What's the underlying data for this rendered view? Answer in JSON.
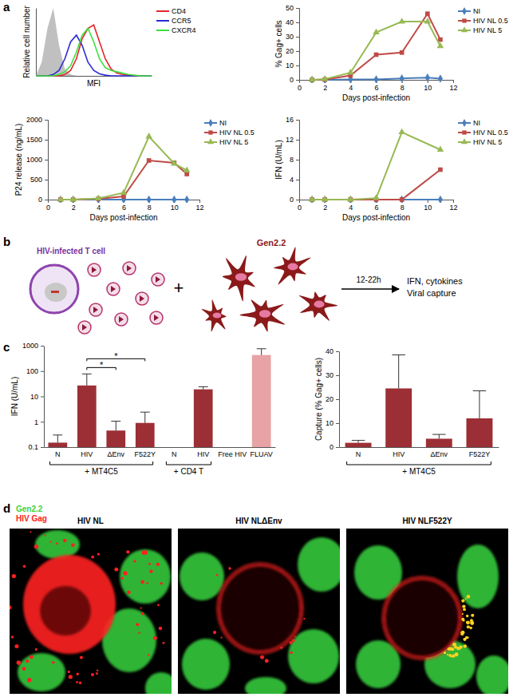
{
  "panel_labels": [
    "a",
    "b",
    "c",
    "d"
  ],
  "chart_data": [
    {
      "type": "line",
      "x_label": "MFI",
      "y_label": "Relative cell number",
      "tick_labels": false,
      "legend": "right",
      "xlim": [
        0,
        100
      ],
      "ylim": [
        0,
        100
      ],
      "x": [
        0,
        5,
        10,
        15,
        20,
        25,
        30,
        35,
        40,
        45,
        50,
        55,
        60,
        65,
        70,
        75,
        80,
        85,
        90,
        95,
        100
      ],
      "series": [
        {
          "type": "area",
          "color": "#c0c0c0",
          "values": [
            0,
            20,
            70,
            100,
            45,
            10,
            2,
            0,
            0,
            0,
            0,
            0,
            0,
            0,
            0,
            0,
            0,
            0,
            0,
            0,
            0
          ]
        },
        {
          "name": "CD4",
          "color": "#e3262b",
          "values": [
            0,
            0,
            0,
            0,
            0,
            2,
            8,
            25,
            55,
            70,
            75,
            50,
            25,
            10,
            4,
            2,
            1,
            0,
            0,
            0,
            0
          ]
        },
        {
          "name": "CCR5",
          "color": "#2b2bd6",
          "values": [
            0,
            0,
            0,
            2,
            8,
            25,
            50,
            60,
            45,
            20,
            8,
            3,
            1,
            0,
            0,
            0,
            0,
            0,
            0,
            0,
            0
          ]
        },
        {
          "name": "CXCR4",
          "color": "#3fe03f",
          "values": [
            0,
            0,
            0,
            0,
            2,
            6,
            15,
            35,
            60,
            70,
            50,
            25,
            12,
            8,
            6,
            4,
            2,
            1,
            0,
            0,
            0
          ]
        }
      ]
    },
    {
      "type": "line",
      "x_label": "Days post-infection",
      "y_label": "% Gag+ cells",
      "legend": "right",
      "xlim": [
        0,
        12
      ],
      "xticks": [
        0,
        2,
        4,
        6,
        8,
        10,
        12
      ],
      "ylim": [
        0,
        50
      ],
      "yticks": [
        0,
        10,
        20,
        30,
        40,
        50
      ],
      "x": [
        1,
        2,
        4,
        6,
        8,
        10,
        11
      ],
      "series": [
        {
          "name": "NI",
          "color": "#4a7ebb",
          "marker": "diamond",
          "values": [
            0,
            0,
            0.3,
            0.3,
            1,
            1.5,
            0.8
          ]
        },
        {
          "name": "HIV NL 0.5",
          "color": "#be4b48",
          "marker": "square",
          "values": [
            0,
            0.2,
            3,
            17.5,
            19,
            46,
            28
          ]
        },
        {
          "name": "HIV NL 5",
          "color": "#98b954",
          "marker": "triangle",
          "values": [
            0,
            0.5,
            5,
            33,
            40.5,
            40.5,
            23.5
          ]
        }
      ]
    },
    {
      "type": "line",
      "x_label": "Days post-infection",
      "y_label": "P24 release (ng/mL)",
      "legend": "right",
      "xlim": [
        0,
        12
      ],
      "xticks": [
        0,
        2,
        4,
        6,
        8,
        10,
        12
      ],
      "ylim": [
        0,
        2000
      ],
      "yticks": [
        0,
        500,
        1000,
        1500,
        2000
      ],
      "x": [
        1,
        2,
        4,
        6,
        8,
        10,
        11
      ],
      "series": [
        {
          "name": "NI",
          "color": "#4a7ebb",
          "marker": "diamond",
          "values": [
            0,
            0,
            0,
            0,
            0,
            0,
            0
          ]
        },
        {
          "name": "HIV NL 0.5",
          "color": "#be4b48",
          "marker": "square",
          "values": [
            0,
            0,
            20,
            80,
            980,
            920,
            640
          ]
        },
        {
          "name": "HIV NL 5",
          "color": "#98b954",
          "marker": "triangle",
          "values": [
            0,
            0,
            30,
            170,
            1580,
            900,
            730
          ]
        }
      ]
    },
    {
      "type": "line",
      "x_label": "Days post-infection",
      "y_label": "IFN (U/mL)",
      "legend": "right",
      "xlim": [
        0,
        12
      ],
      "xticks": [
        0,
        2,
        4,
        6,
        8,
        10,
        12
      ],
      "ylim": [
        0,
        16
      ],
      "yticks": [
        0,
        4,
        8,
        12,
        16
      ],
      "x": [
        1,
        2,
        4,
        6,
        8,
        11
      ],
      "series": [
        {
          "name": "NI",
          "color": "#4a7ebb",
          "marker": "diamond",
          "values": [
            0,
            0,
            0,
            0,
            0,
            0
          ]
        },
        {
          "name": "HIV NL 0.5",
          "color": "#be4b48",
          "marker": "square",
          "values": [
            0,
            0,
            0,
            0,
            0,
            6
          ]
        },
        {
          "name": "HIV NL 5",
          "color": "#98b954",
          "marker": "triangle",
          "values": [
            0,
            0,
            0,
            0.3,
            13.5,
            10
          ]
        }
      ]
    },
    {
      "type": "bar",
      "log": "y",
      "y_label": "IFN (U/mL)",
      "ylim": [
        0.1,
        1000
      ],
      "yticks": [
        0.1,
        1,
        10,
        100,
        1000
      ],
      "categories": [
        "N",
        "HIV",
        "ΔEnv",
        "F522Y",
        "N",
        "HIV",
        "Free HIV",
        "FLUAV"
      ],
      "values": [
        0.15,
        27,
        0.45,
        0.9,
        null,
        19,
        null,
        430
      ],
      "errors": [
        0.15,
        50,
        0.6,
        1.5,
        null,
        5,
        null,
        330
      ],
      "colors": [
        "#9c2f35",
        "#9c2f35",
        "#9c2f35",
        "#9c2f35",
        "#9c2f35",
        "#9c2f35",
        "#9c2f35",
        "#e8a3a6"
      ],
      "groups": [
        {
          "label": "+ MT4C5",
          "from": 0,
          "to": 3
        },
        {
          "label": "+ CD4 T",
          "from": 4,
          "to": 5
        }
      ],
      "significance": [
        {
          "from": 1,
          "to": 2,
          "label": "*"
        },
        {
          "from": 1,
          "to": 3,
          "label": "*"
        }
      ]
    },
    {
      "type": "bar",
      "y_label": "Capture (% Gag+ cells)",
      "ylim": [
        0,
        40
      ],
      "yticks": [
        0,
        10,
        20,
        30,
        40
      ],
      "categories": [
        "N",
        "HIV",
        "ΔEnv",
        "F522Y"
      ],
      "values": [
        1.8,
        24.5,
        3.5,
        12
      ],
      "errors": [
        1,
        14,
        1.8,
        11.5
      ],
      "color": "#9c2f35",
      "groups": [
        {
          "label": "+ MT4C5",
          "from": 0,
          "to": 3
        }
      ]
    }
  ],
  "diagram": {
    "infected_cell_label": "HIV-infected T cell",
    "plus": "+",
    "target_label": "Gen2.2",
    "time": "12-22h",
    "outputs": [
      "IFN, cytokines",
      "Viral capture"
    ]
  },
  "images": {
    "legend": [
      {
        "name": "Gen2.2",
        "color": "#39d43f"
      },
      {
        "name": "HIV Gag",
        "color": "#ff2020"
      }
    ],
    "titles": [
      "HIV NL",
      "HIV NLΔEnv",
      "HIV NLF522Y"
    ]
  }
}
